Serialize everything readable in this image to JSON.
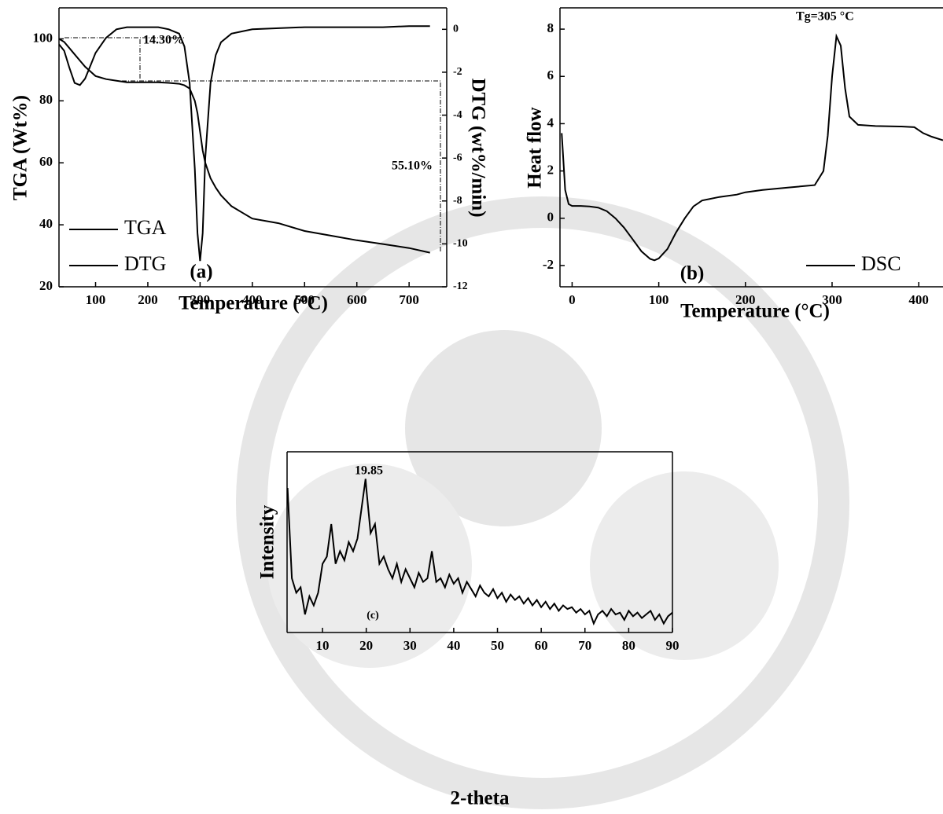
{
  "chart_data": [
    {
      "type": "line",
      "xlabel": "Temperature (°C)",
      "ylabel": "TGA (Wt%)",
      "y2label": "DTG (wt%/min)",
      "annotations": [
        "14.30%",
        "55.10%",
        "(a)"
      ],
      "x": [
        30,
        40,
        50,
        60,
        70,
        80,
        90,
        100,
        120,
        140,
        160,
        180,
        200,
        220,
        240,
        260,
        270,
        280,
        290,
        295,
        300,
        305,
        310,
        320,
        330,
        340,
        360,
        380,
        400,
        450,
        500,
        550,
        600,
        650,
        700,
        740
      ],
      "series": [
        {
          "name": "TGA",
          "color": "#000000",
          "values": [
            100,
            99,
            97,
            95,
            93,
            91,
            89.5,
            88,
            87,
            86.5,
            86,
            86,
            86,
            86,
            85.8,
            85.5,
            85,
            84,
            80,
            76,
            70,
            64,
            60,
            55,
            52,
            49.5,
            46,
            44,
            42,
            40.5,
            38,
            36.5,
            35,
            33.8,
            32.5,
            31
          ]
        },
        {
          "name": "DTG",
          "color": "#000000",
          "axis": "y2",
          "values": [
            -0.7,
            -1,
            -1.8,
            -2.5,
            -2.6,
            -2.3,
            -1.7,
            -1.1,
            -0.4,
            0,
            0.1,
            0.1,
            0.1,
            0.1,
            0,
            -0.2,
            -0.8,
            -2.5,
            -6.5,
            -9.5,
            -10.8,
            -9.5,
            -6,
            -2.5,
            -1.2,
            -0.6,
            -0.2,
            -0.1,
            0,
            0.05,
            0.1,
            0.1,
            0.1,
            0.1,
            0.15,
            0.15
          ]
        }
      ],
      "xlim": [
        30,
        772
      ],
      "xticks": [
        100,
        200,
        300,
        400,
        500,
        600,
        700
      ],
      "ylim": [
        20,
        110
      ],
      "yticks": [
        20,
        40,
        60,
        80,
        100
      ],
      "y2lim": [
        -12,
        1
      ],
      "y2ticks": [
        0,
        -2,
        -4,
        -6,
        -8,
        -10,
        -12
      ],
      "legend": "lower left"
    },
    {
      "type": "line",
      "xlabel": "Temperature (°C)",
      "ylabel": "Heat flow",
      "annotations": [
        "Tg=305 °C",
        "(b)"
      ],
      "x": [
        -12,
        -8,
        -4,
        0,
        10,
        20,
        30,
        40,
        50,
        60,
        70,
        80,
        90,
        95,
        100,
        110,
        120,
        130,
        140,
        150,
        170,
        190,
        200,
        220,
        250,
        280,
        290,
        295,
        300,
        305,
        310,
        315,
        320,
        330,
        350,
        380,
        395,
        405,
        415,
        428
      ],
      "series": [
        {
          "name": "DSC",
          "color": "#000000",
          "values": [
            3.6,
            1.2,
            0.6,
            0.52,
            0.52,
            0.5,
            0.45,
            0.3,
            0,
            -0.4,
            -0.9,
            -1.4,
            -1.72,
            -1.78,
            -1.7,
            -1.3,
            -0.6,
            0,
            0.5,
            0.75,
            0.9,
            1,
            1.1,
            1.2,
            1.3,
            1.4,
            2,
            3.5,
            6,
            7.7,
            7.3,
            5.5,
            4.3,
            3.95,
            3.9,
            3.88,
            3.85,
            3.6,
            3.45,
            3.3
          ]
        }
      ],
      "xlim": [
        -14,
        428
      ],
      "xticks": [
        0,
        100,
        200,
        300,
        400
      ],
      "ylim": [
        -2.9,
        8.9
      ],
      "yticks": [
        -2,
        0,
        2,
        4,
        6,
        8
      ],
      "legend": "lower right"
    },
    {
      "type": "line",
      "xlabel": "2-theta",
      "ylabel": "Intensity",
      "annotations": [
        "19.85",
        "(c)"
      ],
      "x": [
        2,
        3,
        4,
        5,
        6,
        7,
        8,
        9,
        10,
        11,
        12,
        13,
        14,
        15,
        16,
        17,
        18,
        19,
        19.85,
        20,
        21,
        22,
        23,
        24,
        25,
        26,
        27,
        28,
        29,
        30,
        31,
        32,
        33,
        34,
        35,
        36,
        37,
        38,
        39,
        40,
        41,
        42,
        43,
        44,
        45,
        46,
        47,
        48,
        49,
        50,
        51,
        52,
        53,
        54,
        55,
        56,
        57,
        58,
        59,
        60,
        61,
        62,
        63,
        64,
        65,
        66,
        67,
        68,
        69,
        70,
        71,
        72,
        73,
        74,
        75,
        76,
        77,
        78,
        79,
        80,
        81,
        82,
        83,
        84,
        85,
        86,
        87,
        88,
        89,
        90
      ],
      "series": [
        {
          "color": "#000000",
          "values": [
            80,
            30,
            22,
            25,
            10,
            20,
            15,
            22,
            38,
            42,
            60,
            38,
            45,
            40,
            50,
            45,
            52,
            70,
            85,
            80,
            55,
            60,
            38,
            42,
            35,
            30,
            38,
            28,
            35,
            30,
            25,
            33,
            28,
            30,
            45,
            28,
            30,
            25,
            32,
            27,
            30,
            22,
            28,
            24,
            20,
            26,
            22,
            20,
            24,
            19,
            22,
            17,
            21,
            18,
            20,
            16,
            19,
            15,
            18,
            14,
            17,
            13,
            16,
            12,
            15,
            13,
            14,
            11,
            13,
            10,
            12,
            5,
            10,
            12,
            9,
            13,
            10,
            11,
            7,
            12,
            9,
            11,
            8,
            10,
            12,
            7,
            10,
            5,
            9,
            11
          ]
        }
      ],
      "xlim": [
        1.9,
        90
      ],
      "xticks": [
        10,
        20,
        30,
        40,
        50,
        60,
        70,
        80,
        90
      ],
      "ylim": [
        0,
        100
      ]
    }
  ]
}
